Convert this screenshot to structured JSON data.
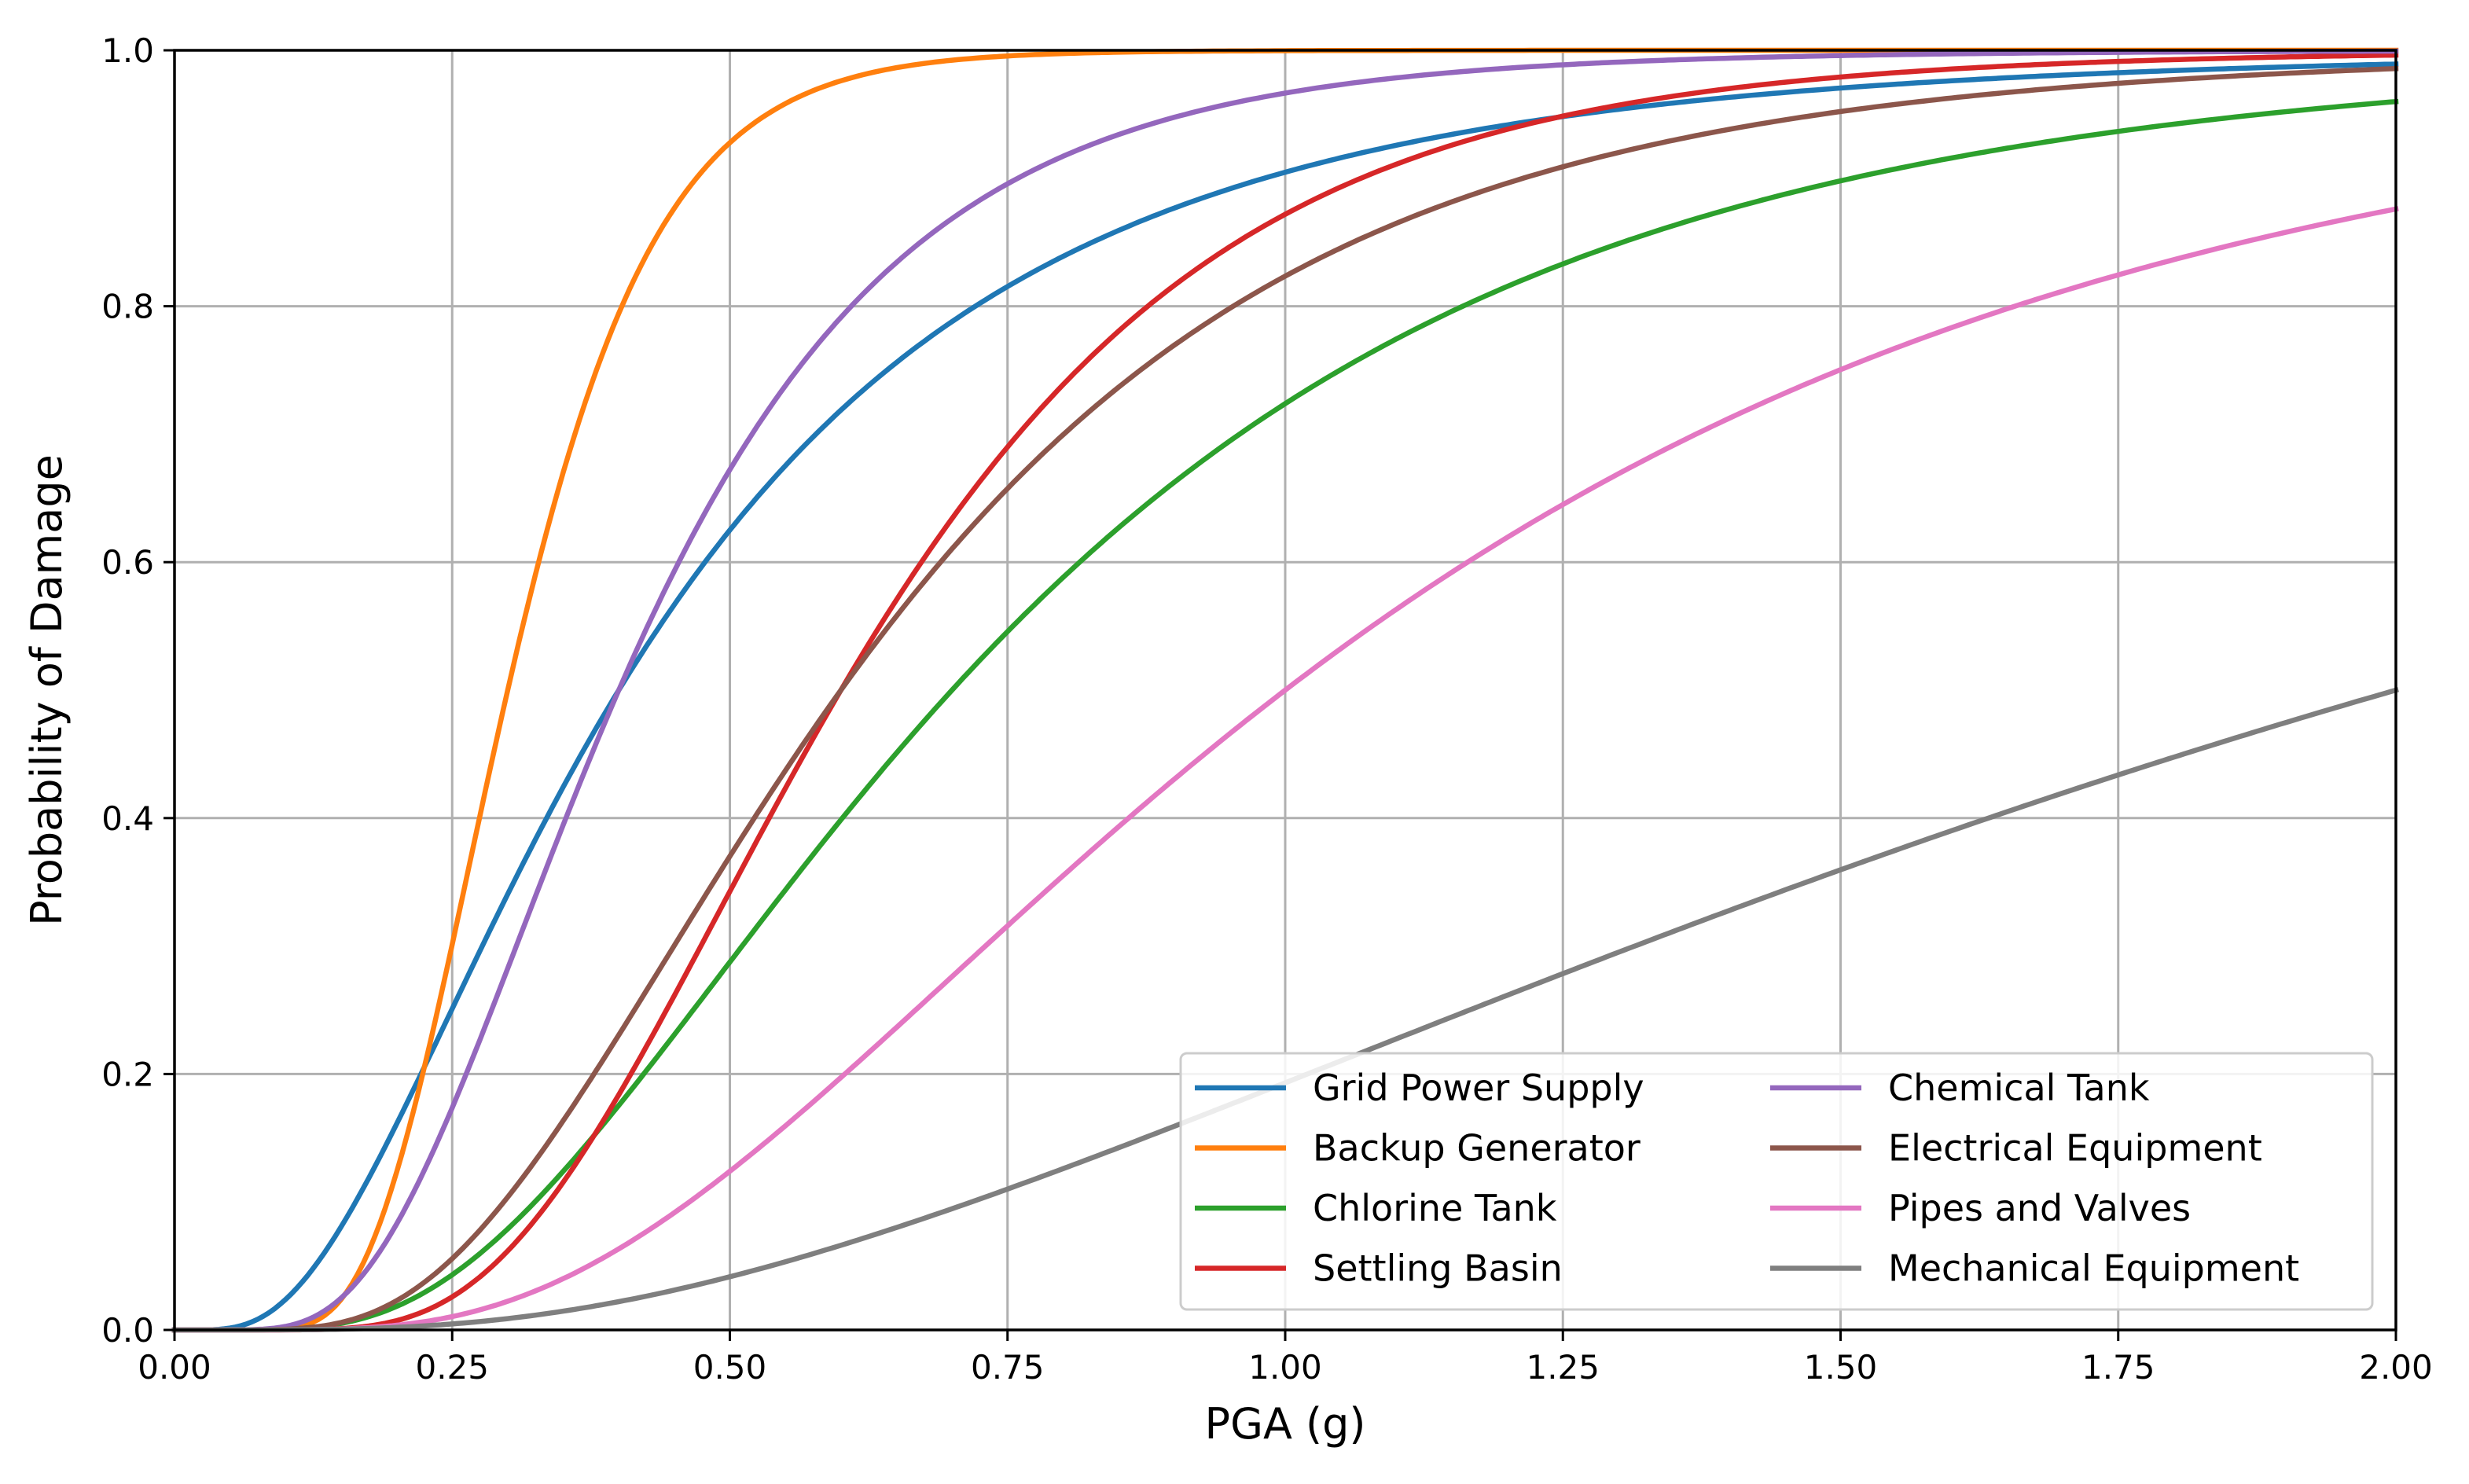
{
  "chart_data": {
    "type": "line",
    "title": "",
    "xlabel": "PGA (g)",
    "ylabel": "Probability of Damage",
    "xlim": [
      0,
      2.0
    ],
    "ylim": [
      0,
      1.0
    ],
    "xticks": [
      0,
      0.25,
      0.5,
      0.75,
      1.0,
      1.25,
      1.5,
      1.75,
      2.0
    ],
    "xtick_labels": [
      "0.00",
      "0.25",
      "0.50",
      "0.75",
      "1.00",
      "1.25",
      "1.50",
      "1.75",
      "2.00"
    ],
    "yticks": [
      0,
      0.2,
      0.4,
      0.6,
      0.8,
      1.0
    ],
    "ytick_labels": [
      "0.0",
      "0.2",
      "0.4",
      "0.6",
      "0.8",
      "1.0"
    ],
    "grid": true,
    "legend_position": "bottom-right",
    "legend_columns": 2,
    "curve_model": "lognormal CDF with median (g) and dispersion beta",
    "series": [
      {
        "name": "Grid Power Supply",
        "color": "#1f77b4",
        "median": 0.4,
        "beta": 0.7
      },
      {
        "name": "Backup Generator",
        "color": "#ff7f0e",
        "median": 0.3,
        "beta": 0.35
      },
      {
        "name": "Chlorine Tank",
        "color": "#2ca02c",
        "median": 0.7,
        "beta": 0.6
      },
      {
        "name": "Settling Basin",
        "color": "#d62728",
        "median": 0.6,
        "beta": 0.45
      },
      {
        "name": "Chemical Tank",
        "color": "#9467bd",
        "median": 0.4,
        "beta": 0.5
      },
      {
        "name": "Electrical Equipment",
        "color": "#8c564b",
        "median": 0.6,
        "beta": 0.55
      },
      {
        "name": "Pipes and Valves",
        "color": "#e377c2",
        "median": 1.0,
        "beta": 0.6
      },
      {
        "name": "Mechanical Equipment",
        "color": "#7f7f7f",
        "median": 2.0,
        "beta": 0.8
      }
    ]
  }
}
